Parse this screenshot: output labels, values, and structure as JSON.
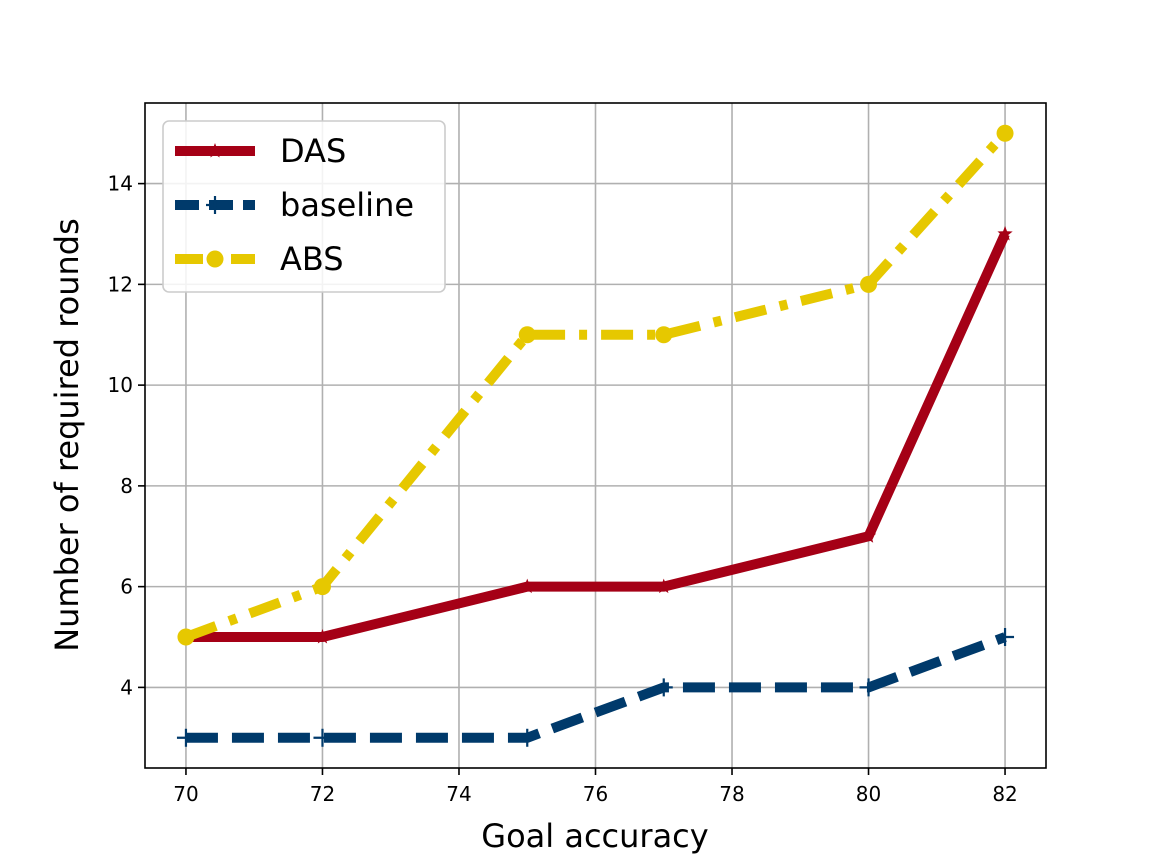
{
  "chart_data": {
    "type": "line",
    "xlabel": "Goal accuracy",
    "ylabel": "Number of required rounds",
    "xlim": [
      69.4,
      82.6
    ],
    "ylim": [
      2.4,
      15.6
    ],
    "xticks": [
      70,
      72,
      74,
      76,
      78,
      80,
      82
    ],
    "yticks": [
      4,
      6,
      8,
      10,
      12,
      14
    ],
    "grid": true,
    "legend_position": "top-left",
    "x": [
      70,
      72,
      75,
      77,
      80,
      82
    ],
    "series": [
      {
        "name": "DAS",
        "values": [
          5,
          5,
          6,
          6,
          7,
          13
        ],
        "color": "#a50016",
        "line_style": "solid",
        "marker": "star"
      },
      {
        "name": "baseline",
        "values": [
          3,
          3,
          3,
          4,
          4,
          5
        ],
        "color": "#003a6b",
        "line_style": "dashed",
        "marker": "plus"
      },
      {
        "name": "ABS",
        "values": [
          5,
          6,
          11,
          11,
          12,
          15
        ],
        "color": "#e6c800",
        "line_style": "dashdot",
        "marker": "circle"
      }
    ]
  }
}
